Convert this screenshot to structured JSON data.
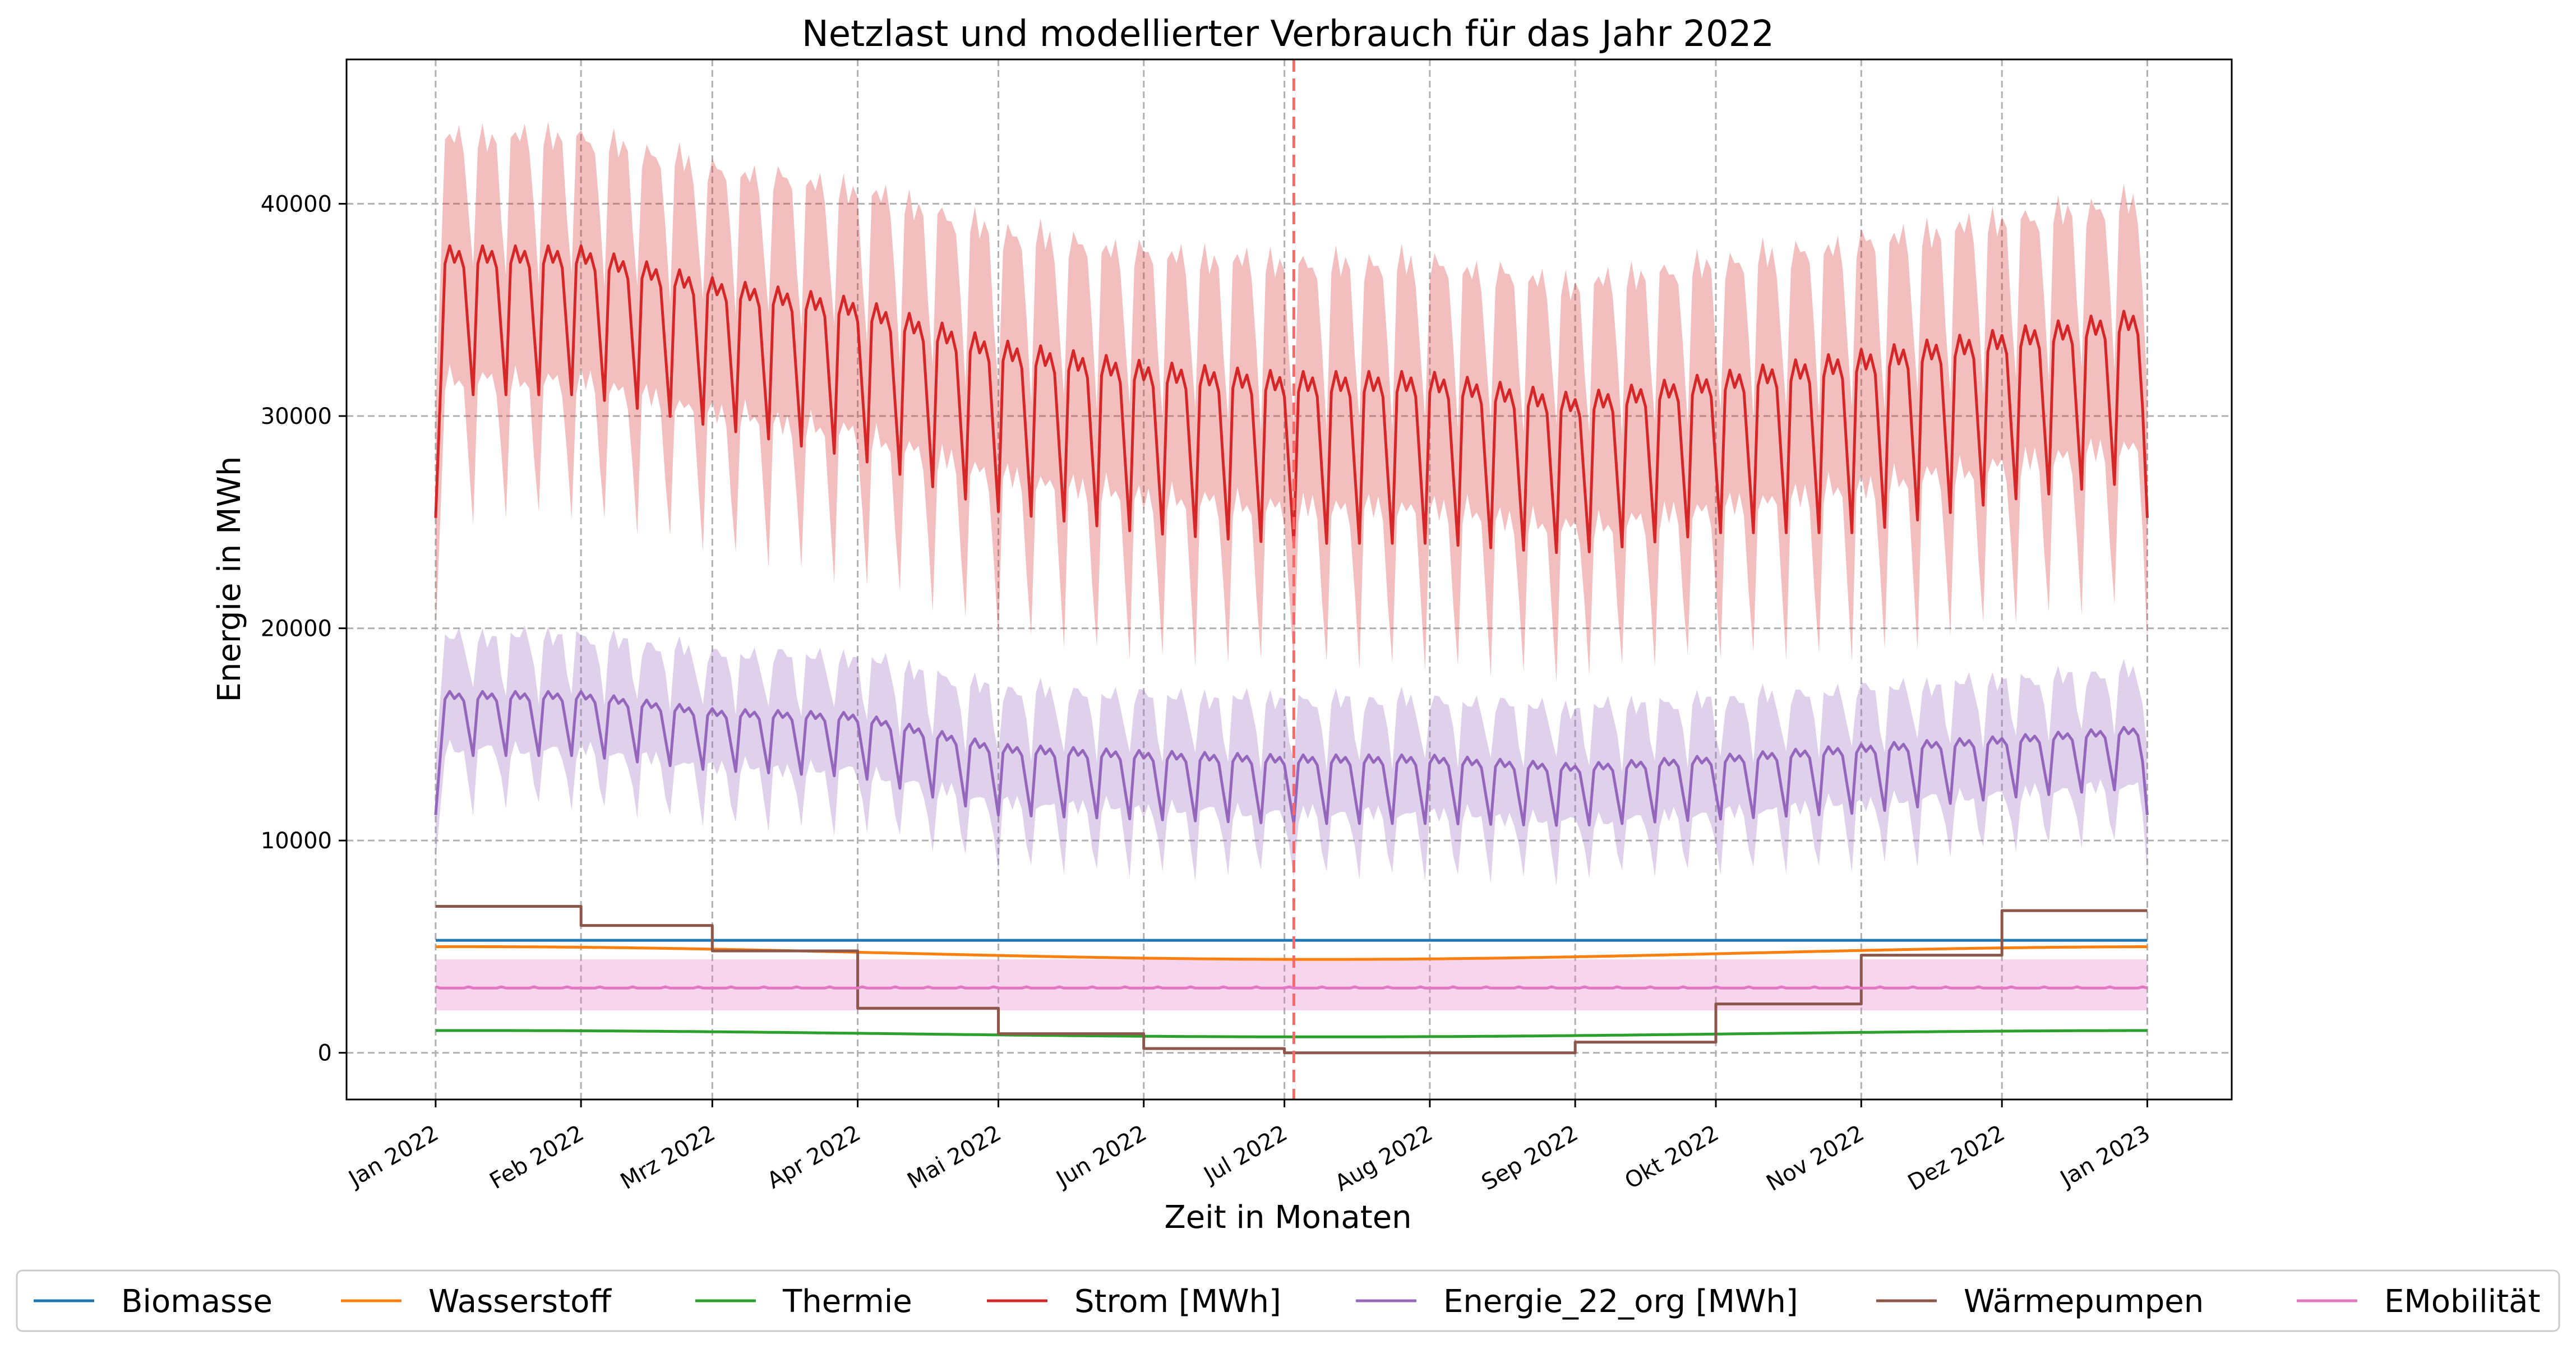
{
  "chart_data": {
    "type": "line",
    "title": "Netzlast und modellierter Verbrauch für das Jahr 2022",
    "xlabel": "Zeit in Monaten",
    "ylabel": "Energie in MWh",
    "x_ticks": [
      "Jan 2022",
      "Feb 2022",
      "Mrz 2022",
      "Apr 2022",
      "Mai 2022",
      "Jun 2022",
      "Jul 2022",
      "Aug 2022",
      "Sep 2022",
      "Okt 2022",
      "Nov 2022",
      "Dez 2022",
      "Jan 2023"
    ],
    "y_ticks": [
      "0",
      "10000",
      "20000",
      "30000",
      "40000"
    ],
    "ylim": [
      -2200,
      46800
    ],
    "xlim": [
      "2021-12-13",
      "2023-01-19"
    ],
    "grid": true,
    "legend_position": "bottom",
    "vline": {
      "x": "2022-07-03",
      "color": "#ff6666",
      "style": "dashed"
    },
    "series": [
      {
        "name": "Biomasse",
        "color": "#1f77b4",
        "kind": "constant",
        "value": 5300
      },
      {
        "name": "Wasserstoff",
        "color": "#ff7f0e",
        "kind": "seasonal",
        "winter": 5000,
        "summer": 4400
      },
      {
        "name": "Thermie",
        "color": "#2ca02c",
        "kind": "seasonal",
        "winter": 1050,
        "summer": 750
      },
      {
        "name": "Strom [MWh]",
        "color": "#d62728",
        "kind": "weekly",
        "band": true,
        "monthly_weekday": [
          37500,
          37500,
          36000,
          35000,
          33000,
          32000,
          31500,
          31500,
          30500,
          31500,
          32500,
          33500,
          34500
        ],
        "monthly_weekend": [
          31000,
          31000,
          29500,
          28000,
          25500,
          24500,
          24000,
          24000,
          23500,
          24500,
          24500,
          26000,
          27000
        ],
        "start": 25200,
        "end": 25200,
        "band_low": 5500,
        "band_high": 5200
      },
      {
        "name": "Energie_22_org [MWh]",
        "color": "#9467bd",
        "kind": "weekly",
        "band": true,
        "monthly_weekday": [
          16800,
          16800,
          16000,
          15800,
          14300,
          14000,
          13800,
          13800,
          13400,
          13800,
          14300,
          14700,
          15200
        ],
        "monthly_weekend": [
          14000,
          14000,
          13300,
          13000,
          11200,
          11000,
          10800,
          10800,
          10700,
          11000,
          11300,
          12000,
          12500
        ],
        "start": 11200,
        "end": 11200,
        "band_low": 2200,
        "band_high": 2400
      },
      {
        "name": "Wärmepumpen",
        "color": "#8c564b",
        "kind": "step",
        "steps": [
          [
            "2022-01-01",
            6900
          ],
          [
            "2022-02-01",
            6000
          ],
          [
            "2022-03-01",
            4800
          ],
          [
            "2022-04-01",
            2100
          ],
          [
            "2022-05-01",
            900
          ],
          [
            "2022-06-01",
            200
          ],
          [
            "2022-07-01",
            0
          ],
          [
            "2022-09-01",
            500
          ],
          [
            "2022-10-01",
            2300
          ],
          [
            "2022-11-01",
            4600
          ],
          [
            "2022-12-01",
            6700
          ],
          [
            "2023-01-01",
            6700
          ]
        ]
      },
      {
        "name": "EMobilität",
        "color": "#e377c2",
        "kind": "flat",
        "value": 3050,
        "band": true,
        "band_low": 1050,
        "band_high": 1350
      }
    ]
  }
}
